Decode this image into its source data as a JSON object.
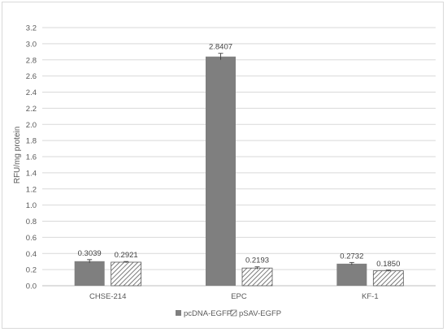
{
  "chart_data": {
    "type": "bar",
    "title": "",
    "xlabel": "",
    "ylabel": "RFU/mg protein",
    "ylim": [
      0,
      3.2
    ],
    "yticks": [
      "0.0",
      "0.2",
      "0.4",
      "0.6",
      "0.8",
      "1.0",
      "1.2",
      "1.4",
      "1.6",
      "1.8",
      "2.0",
      "2.2",
      "2.4",
      "2.6",
      "2.8",
      "3.0",
      "3.2"
    ],
    "grid": true,
    "legend_position": "bottom",
    "categories": [
      "CHSE-214",
      "EPC",
      "KF-1"
    ],
    "series": [
      {
        "name": "pcDNA-EGFP",
        "style": "solid",
        "color": "#7f7f7f",
        "values": [
          0.3039,
          2.8407,
          0.2732
        ],
        "labels": [
          "0.3039",
          "2.8407",
          "0.2732"
        ],
        "errors": [
          0.02,
          0.04,
          0.015
        ]
      },
      {
        "name": "pSAV-EGFP",
        "style": "hatched",
        "color": "#595959",
        "values": [
          0.2921,
          0.2193,
          0.185
        ],
        "labels": [
          "0.2921",
          "0.2193",
          "0.1850"
        ],
        "errors": [
          0.008,
          0.015,
          0.008
        ]
      }
    ]
  }
}
